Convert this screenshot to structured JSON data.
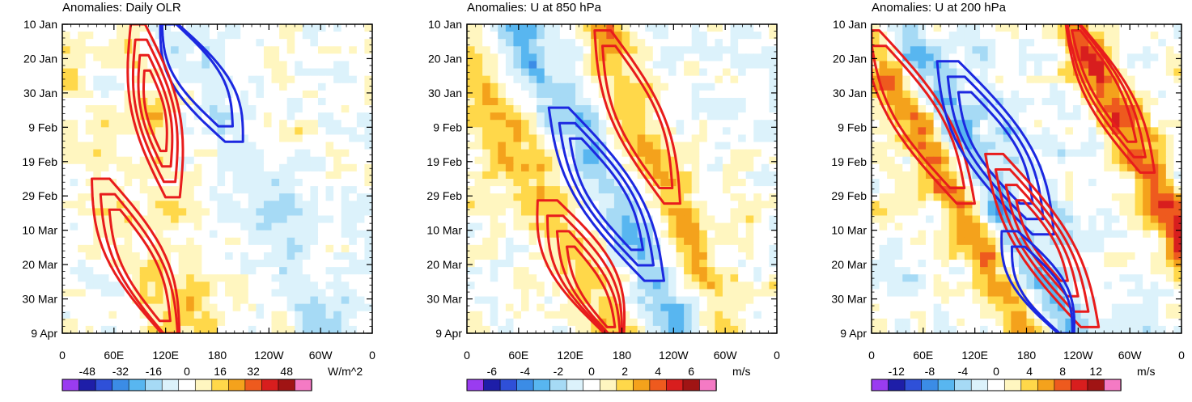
{
  "chart_data": [
    {
      "type": "heatmap",
      "id": "olr",
      "title": "Anomalies: Daily OLR",
      "xlabel": "",
      "ylabel": "",
      "x_ticks": [
        "0",
        "60E",
        "120E",
        "180",
        "120W",
        "60W",
        "0"
      ],
      "y_ticks": [
        "10 Jan",
        "20 Jan",
        "30 Jan",
        "9 Feb",
        "19 Feb",
        "29 Feb",
        "10 Mar",
        "20 Mar",
        "30 Mar",
        "9 Apr"
      ],
      "colorbar": {
        "unit": "W/m^2",
        "levels": [
          -56,
          -48,
          -40,
          -32,
          -24,
          -16,
          -8,
          0,
          8,
          16,
          24,
          32,
          40,
          48,
          56
        ],
        "labels": [
          "-48",
          "-32",
          "-16",
          "0",
          "16",
          "32",
          "48"
        ]
      },
      "contours": "regressed MJO propagation (positive red, negative blue)"
    },
    {
      "type": "heatmap",
      "id": "u850",
      "title": "Anomalies: U at 850 hPa",
      "xlabel": "",
      "ylabel": "",
      "x_ticks": [
        "0",
        "60E",
        "120E",
        "180",
        "120W",
        "60W",
        "0"
      ],
      "y_ticks": [
        "10 Jan",
        "20 Jan",
        "30 Jan",
        "9 Feb",
        "19 Feb",
        "29 Feb",
        "10 Mar",
        "20 Mar",
        "30 Mar",
        "9 Apr"
      ],
      "colorbar": {
        "unit": "m/s",
        "levels": [
          -7,
          -6,
          -5,
          -4,
          -3,
          -2,
          -1,
          0,
          1,
          2,
          3,
          4,
          5,
          6,
          7
        ],
        "labels": [
          "-6",
          "-4",
          "-2",
          "0",
          "2",
          "4",
          "6"
        ]
      },
      "contours": "regressed MJO propagation (positive red, negative blue)"
    },
    {
      "type": "heatmap",
      "id": "u200",
      "title": "Anomalies: U at 200 hPa",
      "xlabel": "",
      "ylabel": "",
      "x_ticks": [
        "0",
        "60E",
        "120E",
        "180",
        "120W",
        "60W",
        "0"
      ],
      "y_ticks": [
        "10 Jan",
        "20 Jan",
        "30 Jan",
        "9 Feb",
        "19 Feb",
        "29 Feb",
        "10 Mar",
        "20 Mar",
        "30 Mar",
        "9 Apr"
      ],
      "colorbar": {
        "unit": "m/s",
        "levels": [
          -14,
          -12,
          -10,
          -8,
          -6,
          -4,
          -2,
          0,
          2,
          4,
          6,
          8,
          10,
          12,
          14
        ],
        "labels": [
          "-12",
          "-8",
          "-4",
          "0",
          "4",
          "8",
          "12"
        ]
      },
      "contours": "regressed MJO propagation (positive red, negative blue)"
    }
  ],
  "palette": [
    "#9a3cf0",
    "#1e1ea8",
    "#2f50d8",
    "#3b8ce6",
    "#58b6f0",
    "#a6daf5",
    "#dcf2fb",
    "#ffffff",
    "#fff6c0",
    "#ffd84a",
    "#f4a21c",
    "#ee5a1e",
    "#d81e1e",
    "#a01414",
    "#f47ac4"
  ],
  "contour_colors": {
    "positive": "#e81c1c",
    "negative": "#1c28e0"
  }
}
